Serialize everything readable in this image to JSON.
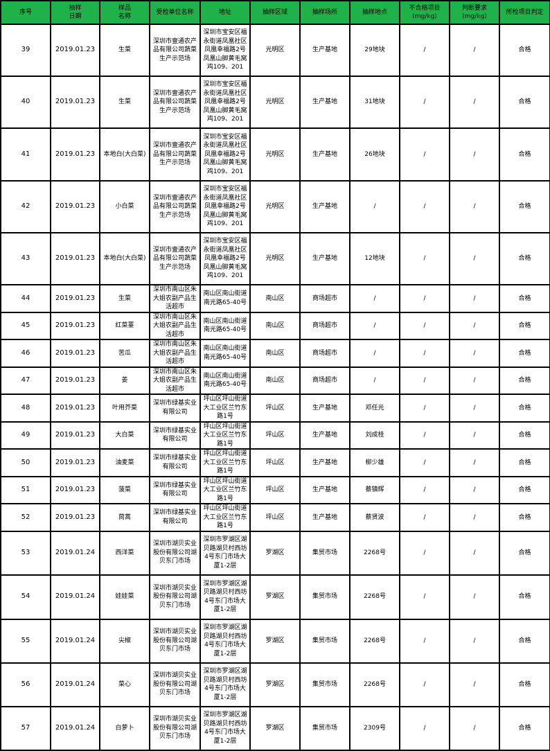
{
  "header_bg": "#1fb24a",
  "headers": [
    "序号",
    "抽样\n日期",
    "样品\n名称",
    "受检单位名称",
    "地址",
    "抽样区域",
    "抽样场所",
    "抽样地点",
    "不合格项目\n(mg/kg)",
    "判断要求\n(mg/kg)",
    "所检项目判定"
  ],
  "rows": [
    {
      "no": "39",
      "date": "2019.01.23",
      "sample": "生菜",
      "unit": "深圳市壹通农产品有限公司蔬菜生产示范场",
      "address": "深圳市宝安区福永街道凤凰社区凤凰幸福路2号凤凰山脚黄毛窝鸡109、201",
      "area": "光明区",
      "place": "生产基地",
      "spot": "29地块",
      "fail_item": "/",
      "requirement": "/",
      "result": "合格"
    },
    {
      "no": "40",
      "date": "2019.01.23",
      "sample": "生菜",
      "unit": "深圳市壹通农产品有限公司蔬菜生产示范场",
      "address": "深圳市宝安区福永街道凤凰社区凤凰幸福路2号凤凰山脚黄毛窝鸡109、201",
      "area": "光明区",
      "place": "生产基地",
      "spot": "31地块",
      "fail_item": "/",
      "requirement": "/",
      "result": "合格"
    },
    {
      "no": "41",
      "date": "2019.01.23",
      "sample": "本地白(大白菜)",
      "unit": "深圳市壹通农产品有限公司蔬菜生产示范场",
      "address": "深圳市宝安区福永街道凤凰社区凤凰幸福路2号凤凰山脚黄毛窝鸡109、201",
      "area": "光明区",
      "place": "生产基地",
      "spot": "26地块",
      "fail_item": "/",
      "requirement": "/",
      "result": "合格"
    },
    {
      "no": "42",
      "date": "2019.01.23",
      "sample": "小白菜",
      "unit": "深圳市壹通农产品有限公司蔬菜生产示范场",
      "address": "深圳市宝安区福永街道凤凰社区凤凰幸福路2号凤凰山脚黄毛窝鸡109、201",
      "area": "光明区",
      "place": "生产基地",
      "spot": "/",
      "fail_item": "/",
      "requirement": "/",
      "result": "合格"
    },
    {
      "no": "43",
      "date": "2019.01.23",
      "sample": "本地白(大白菜)",
      "unit": "深圳市壹通农产品有限公司蔬菜生产示范场",
      "address": "深圳市宝安区福永街道凤凰社区凤凰幸福路2号凤凰山脚黄毛窝鸡109、201",
      "area": "光明区",
      "place": "生产基地",
      "spot": "12地块",
      "fail_item": "/",
      "requirement": "/",
      "result": "合格"
    },
    {
      "no": "44",
      "date": "2019.01.23",
      "sample": "生菜",
      "unit": "深圳市南山区朱大姐农副产品生活超市",
      "address": "南山区南山街道南光路65-40号",
      "area": "南山区",
      "place": "商场超市",
      "spot": "/",
      "fail_item": "/",
      "requirement": "/",
      "result": "合格"
    },
    {
      "no": "45",
      "date": "2019.01.23",
      "sample": "红菜薹",
      "unit": "深圳市南山区朱大姐农副产品生活超市",
      "address": "南山区南山街道南光路65-40号",
      "area": "南山区",
      "place": "商场超市",
      "spot": "/",
      "fail_item": "/",
      "requirement": "/",
      "result": "合格"
    },
    {
      "no": "46",
      "date": "2019.01.23",
      "sample": "苦瓜",
      "unit": "深圳市南山区朱大姐农副产品生活超市",
      "address": "南山区南山街道南光路65-40号",
      "area": "南山区",
      "place": "商场超市",
      "spot": "/",
      "fail_item": "/",
      "requirement": "/",
      "result": "合格"
    },
    {
      "no": "47",
      "date": "2019.01.23",
      "sample": "姜",
      "unit": "深圳市南山区朱大姐农副产品生活超市",
      "address": "南山区南山街道南光路65-40号",
      "area": "南山区",
      "place": "商场超市",
      "spot": "/",
      "fail_item": "/",
      "requirement": "/",
      "result": "合格"
    },
    {
      "no": "48",
      "date": "2019.01.23",
      "sample": "叶用芥菜",
      "unit": "深圳市绿基实业有限公司",
      "address": "坪山区坪山街道大工业区兰竹东路1号",
      "area": "坪山区",
      "place": "生产基地",
      "spot": "邓任光",
      "fail_item": "/",
      "requirement": "/",
      "result": "合格"
    },
    {
      "no": "49",
      "date": "2019.01.23",
      "sample": "大白菜",
      "unit": "深圳市绿基实业有限公司",
      "address": "坪山区坪山街道大工业区兰竹东路1号",
      "area": "坪山区",
      "place": "生产基地",
      "spot": "刘成桂",
      "fail_item": "/",
      "requirement": "/",
      "result": "合格"
    },
    {
      "no": "50",
      "date": "2019.01.23",
      "sample": "油麦菜",
      "unit": "深圳市绿基实业有限公司",
      "address": "坪山区坪山街道大工业区兰竹东路1号",
      "area": "坪山区",
      "place": "生产基地",
      "spot": "柳少雄",
      "fail_item": "/",
      "requirement": "/",
      "result": "合格"
    },
    {
      "no": "51",
      "date": "2019.01.23",
      "sample": "菠菜",
      "unit": "深圳市绿基实业有限公司",
      "address": "坪山区坪山街道大工业区兰竹东路1号",
      "area": "坪山区",
      "place": "生产基地",
      "spot": "蔡镇辉",
      "fail_item": "/",
      "requirement": "/",
      "result": "合格"
    },
    {
      "no": "52",
      "date": "2019.01.23",
      "sample": "茼蒿",
      "unit": "深圳市绿基实业有限公司",
      "address": "坪山区坪山街道大工业区兰竹东路1号",
      "area": "坪山区",
      "place": "生产基地",
      "spot": "蔡贤波",
      "fail_item": "/",
      "requirement": "/",
      "result": "合格"
    },
    {
      "no": "53",
      "date": "2019.01.24",
      "sample": "西洋菜",
      "unit": "深圳市湖贝实业股份有限公司湖贝东门市场",
      "address": "深圳市罗湖区湖贝路湖贝村西坊4号东门市场大厦1-2层",
      "area": "罗湖区",
      "place": "集贸市场",
      "spot": "2268号",
      "fail_item": "/",
      "requirement": "/",
      "result": "合格"
    },
    {
      "no": "54",
      "date": "2019.01.24",
      "sample": "娃娃菜",
      "unit": "深圳市湖贝实业股份有限公司湖贝东门市场",
      "address": "深圳市罗湖区湖贝路湖贝村西坊4号东门市场大厦1-2层",
      "area": "罗湖区",
      "place": "集贸市场",
      "spot": "2268号",
      "fail_item": "/",
      "requirement": "/",
      "result": "合格"
    },
    {
      "no": "55",
      "date": "2019.01.24",
      "sample": "尖椒",
      "unit": "深圳市湖贝实业股份有限公司湖贝东门市场",
      "address": "深圳市罗湖区湖贝路湖贝村西坊4号东门市场大厦1-2层",
      "area": "罗湖区",
      "place": "集贸市场",
      "spot": "2268号",
      "fail_item": "/",
      "requirement": "/",
      "result": "合格"
    },
    {
      "no": "56",
      "date": "2019.01.24",
      "sample": "菜心",
      "unit": "深圳市湖贝实业股份有限公司湖贝东门市场",
      "address": "深圳市罗湖区湖贝路湖贝村西坊4号东门市场大厦1-2层",
      "area": "罗湖区",
      "place": "集贸市场",
      "spot": "2268号",
      "fail_item": "/",
      "requirement": "/",
      "result": "合格"
    },
    {
      "no": "57",
      "date": "2019.01.24",
      "sample": "白萝卜",
      "unit": "深圳市湖贝实业股份有限公司湖贝东门市场",
      "address": "深圳市罗湖区湖贝路湖贝村西坊4号东门市场大厦1-2层",
      "area": "罗湖区",
      "place": "集贸市场",
      "spot": "2309号",
      "fail_item": "/",
      "requirement": "/",
      "result": "合格"
    }
  ]
}
